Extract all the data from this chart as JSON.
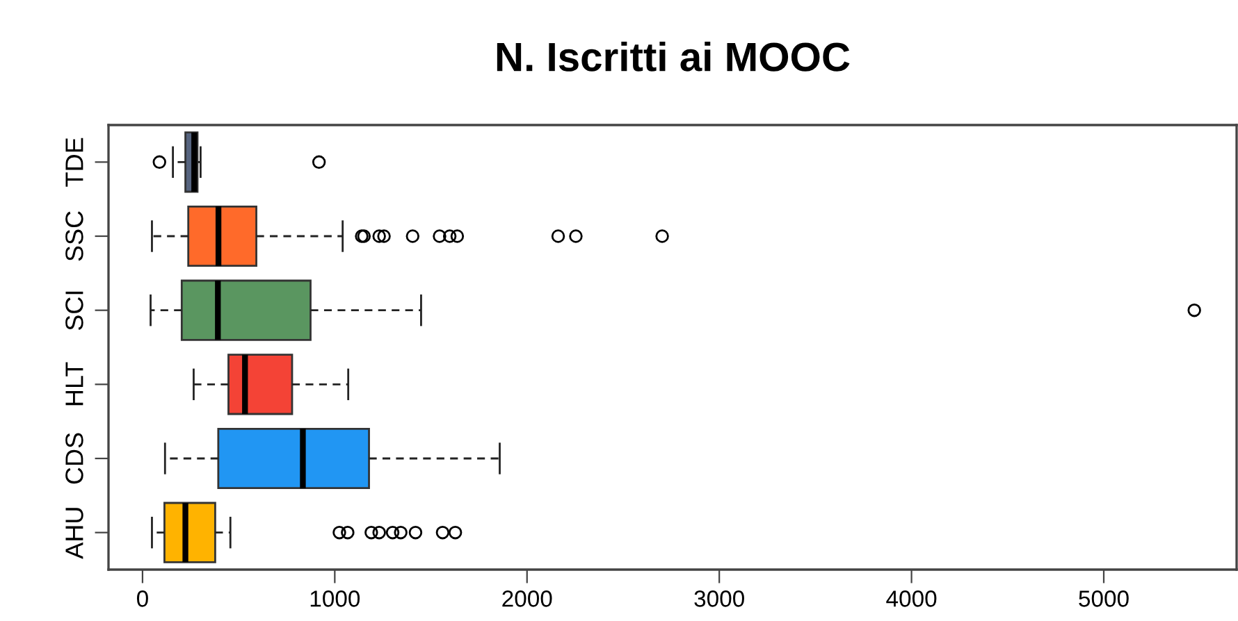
{
  "chart_data": {
    "type": "box",
    "orientation": "horizontal",
    "title": "N. Iscritti ai MOOC",
    "categories": [
      "TDE",
      "SSC",
      "SCI",
      "HLT",
      "CDS",
      "AHU"
    ],
    "colors": [
      "#56647f",
      "#ff6a2a",
      "#5a9660",
      "#f44336",
      "#2196f3",
      "#ffb300"
    ],
    "boxes": [
      {
        "low": 158,
        "q1": 223,
        "median": 269,
        "q3": 286,
        "high": 302,
        "outliers": [
          88,
          918
        ]
      },
      {
        "low": 49,
        "q1": 238,
        "median": 395,
        "q3": 592,
        "high": 1041,
        "outliers": [
          1140,
          1152,
          1231,
          1256,
          1405,
          1545,
          1598,
          1637,
          2162,
          2254,
          2703
        ]
      },
      {
        "low": 42,
        "q1": 204,
        "median": 392,
        "q3": 874,
        "high": 1449,
        "outliers": [
          5471
        ]
      },
      {
        "low": 266,
        "q1": 447,
        "median": 533,
        "q3": 778,
        "high": 1070
      },
      {
        "low": 117,
        "q1": 394,
        "median": 834,
        "q3": 1178,
        "high": 1858
      },
      {
        "low": 49,
        "q1": 114,
        "median": 223,
        "q3": 378,
        "high": 457,
        "outliers": [
          1024,
          1067,
          1190,
          1231,
          1301,
          1343,
          1420,
          1561,
          1627
        ]
      }
    ],
    "xlim": [
      -177,
      5691
    ],
    "xticks": [
      0,
      1000,
      2000,
      3000,
      4000,
      5000
    ],
    "grid": false
  }
}
